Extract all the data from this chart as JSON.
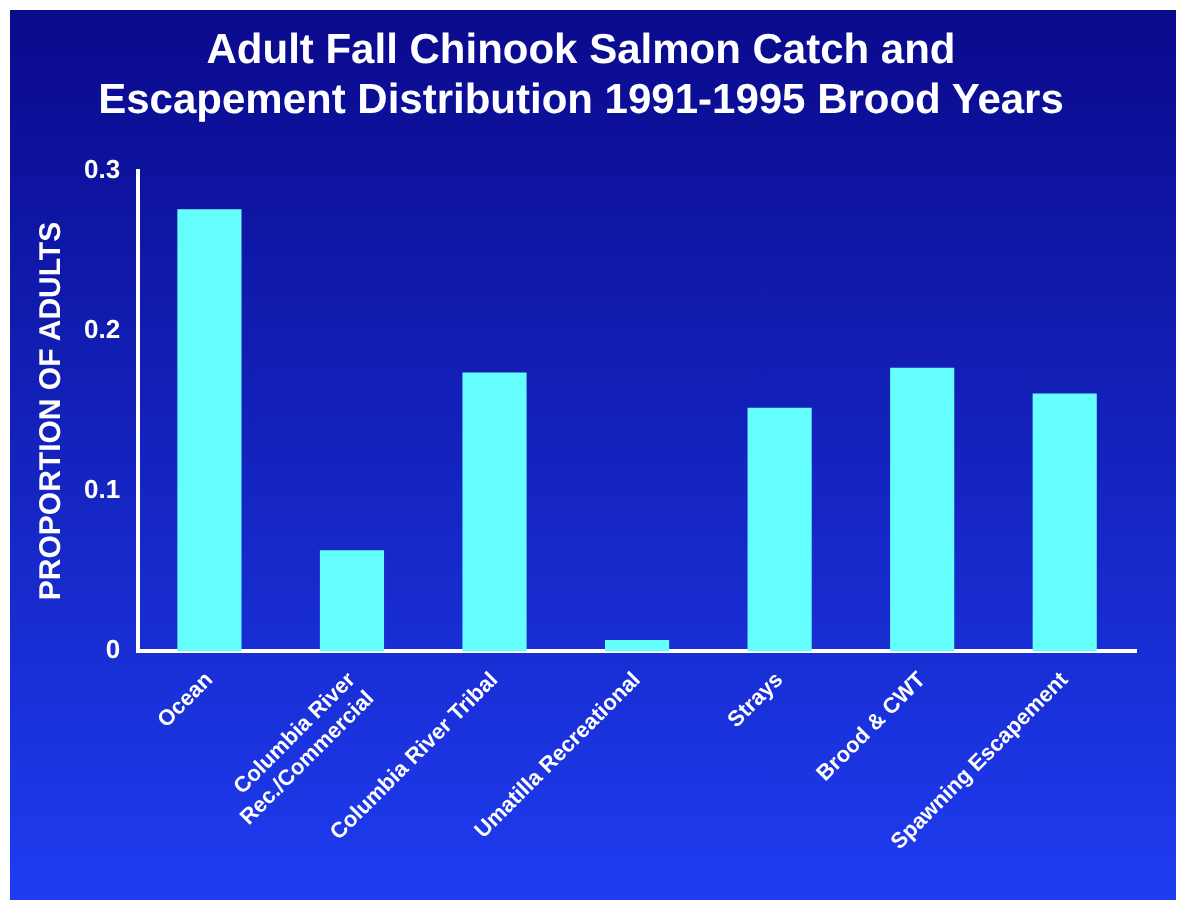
{
  "chart_data": {
    "type": "bar",
    "title": "Adult Fall Chinook Salmon Catch and\nEscapement Distribution 1991-1995 Brood Years",
    "ylabel": "PROPORTION OF ADULTS",
    "categories": [
      "Ocean",
      "Columbia River\nRec./Commercial",
      "Columbia River Tribal",
      "Umatilla Recreational",
      "Strays",
      "Brood & CWT",
      "Spawning Escapement"
    ],
    "values": [
      0.276,
      0.063,
      0.174,
      0.007,
      0.152,
      0.177,
      0.161
    ],
    "color": "#66ffff",
    "ylim": [
      0,
      0.3
    ],
    "yticks": [
      0,
      0.1,
      0.2,
      0.3
    ],
    "grid": false,
    "legend": false
  }
}
